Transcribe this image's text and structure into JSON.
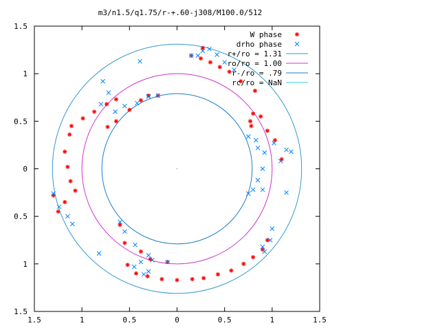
{
  "chart_data": {
    "type": "scatter",
    "title": "m3/n1.5/q1.75/r-+.60-j308/M100.0/512",
    "xlim": [
      -1.5,
      1.5
    ],
    "ylim": [
      -1.5,
      1.5
    ],
    "xticks": [
      -1.5,
      -1,
      -0.5,
      0,
      0.5,
      1,
      1.5
    ],
    "xtick_labels": [
      "1.5",
      "1",
      "0.5",
      "0",
      "0.5",
      "1",
      "1.5"
    ],
    "yticks": [
      1.5,
      1,
      0.5,
      0,
      -0.5,
      -1,
      -1.5
    ],
    "ytick_labels": [
      "1.5",
      "1",
      "0.5",
      "0",
      "0.5",
      "1",
      "1.5"
    ],
    "grid": false,
    "legend_position": "top-right",
    "series": [
      {
        "name": "W phase",
        "style": "point",
        "color": "#ff0000",
        "points": [
          [
            -1.18,
            0.18
          ],
          [
            -1.15,
            0.02
          ],
          [
            -1.12,
            -0.13
          ],
          [
            -1.07,
            -0.23
          ],
          [
            -1.18,
            -0.35
          ],
          [
            -1.3,
            -0.28
          ],
          [
            -1.25,
            -0.45
          ],
          [
            -1.13,
            0.36
          ],
          [
            -1.11,
            0.45
          ],
          [
            -0.99,
            0.53
          ],
          [
            -0.87,
            0.6
          ],
          [
            -0.74,
            0.68
          ],
          [
            -0.64,
            0.73
          ],
          [
            -0.73,
            0.44
          ],
          [
            -0.64,
            0.5
          ],
          [
            -0.5,
            0.62
          ],
          [
            -0.38,
            0.72
          ],
          [
            -0.3,
            0.77
          ],
          [
            -0.2,
            0.77
          ],
          [
            -0.6,
            -0.59
          ],
          [
            -0.55,
            -0.78
          ],
          [
            -0.38,
            -0.87
          ],
          [
            -0.28,
            -0.95
          ],
          [
            -0.1,
            -0.98
          ],
          [
            -0.52,
            -1.01
          ],
          [
            -0.43,
            -1.1
          ],
          [
            -0.31,
            -1.13
          ],
          [
            -0.16,
            -1.16
          ],
          [
            0,
            -1.17
          ],
          [
            0.16,
            -1.16
          ],
          [
            0.28,
            -1.15
          ],
          [
            0.43,
            -1.11
          ],
          [
            0.57,
            -1.07
          ],
          [
            0.7,
            -1.0
          ],
          [
            0.8,
            -0.93
          ],
          [
            0.9,
            -0.85
          ],
          [
            0.95,
            -0.75
          ],
          [
            0.8,
            0.58
          ],
          [
            0.78,
            0.45
          ],
          [
            0.77,
            0.5
          ],
          [
            0.88,
            0.55
          ],
          [
            0.95,
            0.4
          ],
          [
            1.03,
            0.3
          ],
          [
            1.1,
            0.1
          ],
          [
            0.82,
            0.82
          ],
          [
            0.67,
            0.92
          ],
          [
            0.55,
            1.02
          ],
          [
            0.45,
            1.07
          ],
          [
            0.35,
            1.12
          ],
          [
            0.25,
            1.16
          ],
          [
            0.15,
            1.19
          ],
          [
            0.27,
            1.27
          ]
        ]
      },
      {
        "name": "drho phase",
        "style": "cross",
        "color": "#0080ff",
        "points": [
          [
            0.15,
            1.19
          ],
          [
            0.22,
            1.19
          ],
          [
            0.27,
            1.24
          ],
          [
            0.34,
            1.26
          ],
          [
            0.42,
            1.2
          ],
          [
            0.5,
            1.12
          ],
          [
            0.6,
            1.04
          ],
          [
            -0.39,
            1.13
          ],
          [
            -0.78,
            0.92
          ],
          [
            -0.8,
            0.68
          ],
          [
            -0.72,
            0.8
          ],
          [
            -0.65,
            0.6
          ],
          [
            -0.55,
            0.66
          ],
          [
            -0.42,
            0.69
          ],
          [
            -0.3,
            0.76
          ],
          [
            -0.2,
            0.77
          ],
          [
            0.75,
            0.34
          ],
          [
            0.83,
            0.3
          ],
          [
            0.85,
            0.22
          ],
          [
            0.92,
            0.17
          ],
          [
            1.02,
            0.27
          ],
          [
            1.09,
            0.08
          ],
          [
            1.15,
            0.2
          ],
          [
            1.2,
            0.18
          ],
          [
            0.9,
            0.0
          ],
          [
            0.85,
            -0.12
          ],
          [
            0.8,
            -0.22
          ],
          [
            0.75,
            -0.26
          ],
          [
            0.9,
            -0.22
          ],
          [
            1.15,
            -0.25
          ],
          [
            1.0,
            -0.63
          ],
          [
            0.98,
            -0.75
          ],
          [
            0.9,
            -0.82
          ],
          [
            0.92,
            -0.87
          ],
          [
            -1.3,
            -0.26
          ],
          [
            -1.24,
            -0.4
          ],
          [
            -1.15,
            -0.5
          ],
          [
            -1.1,
            -0.58
          ],
          [
            -0.82,
            -0.89
          ],
          [
            -0.6,
            -0.56
          ],
          [
            -0.55,
            -0.66
          ],
          [
            -0.44,
            -0.8
          ],
          [
            -0.3,
            -0.91
          ],
          [
            -0.1,
            -0.98
          ],
          [
            -0.38,
            -0.98
          ],
          [
            -0.26,
            -0.96
          ],
          [
            -0.45,
            -1.03
          ],
          [
            -0.35,
            -1.11
          ],
          [
            -0.3,
            -1.08
          ]
        ]
      }
    ],
    "circles": [
      {
        "name": "r+/ro = 1.31",
        "r": 1.31,
        "color": "#3399cc"
      },
      {
        "name": "ro/ro = 1.00",
        "r": 1.0,
        "color": "#cc33cc"
      },
      {
        "name": "r-/ro = .79",
        "r": 0.79,
        "color": "#1a7fc4"
      },
      {
        "name": "rc/ro = NaN",
        "r": null,
        "color": "#33cccc"
      }
    ]
  }
}
